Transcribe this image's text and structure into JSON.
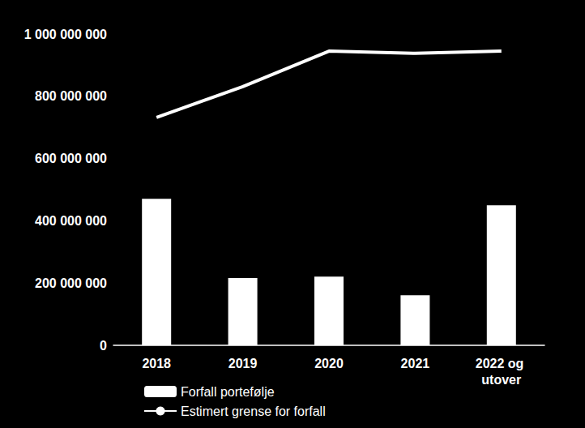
{
  "chart_data": {
    "type": "bar",
    "categories": [
      "2018",
      "2019",
      "2020",
      "2021",
      "2022 og utover"
    ],
    "series": [
      {
        "name": "Forfall portefølje",
        "type": "bar",
        "color": "#ffffff",
        "values": [
          471000000,
          216000000,
          221000000,
          161000000,
          450000000
        ]
      },
      {
        "name": "Estimert grense for forfall",
        "type": "line",
        "color": "#ffffff",
        "values": [
          732000000,
          831000000,
          945000000,
          938000000,
          945000000
        ]
      }
    ],
    "ylim": [
      0,
      1000000000
    ],
    "yticks": [
      0,
      {
        "value": 200000000,
        "label": "200 000 000"
      },
      {
        "value": 400000000,
        "label": "400 000 000"
      },
      {
        "value": 600000000,
        "label": "600 000 000"
      },
      {
        "value": 800000000,
        "label": "800 000 000"
      },
      {
        "value": 1000000000,
        "label": "1 000 000 000"
      }
    ],
    "grid": false,
    "legend": "bottom"
  }
}
